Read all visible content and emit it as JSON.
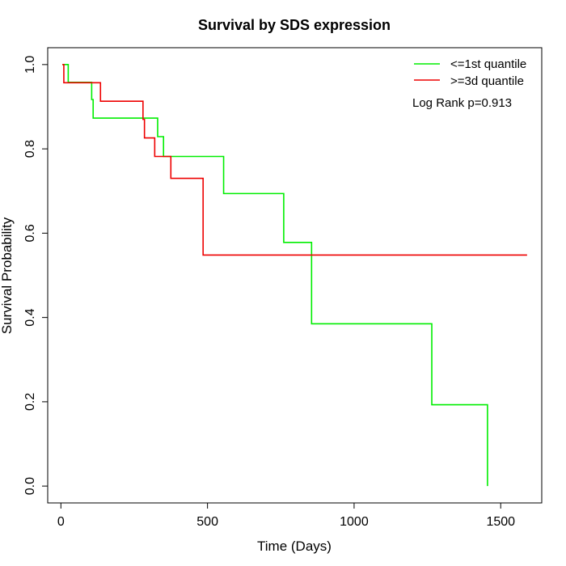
{
  "chart_data": {
    "type": "line",
    "step": true,
    "title": "Survival by SDS expression",
    "xlabel": "Time (Days)",
    "ylabel": "Survival Probability",
    "xlim": [
      -45,
      1640
    ],
    "ylim": [
      -0.04,
      1.04
    ],
    "xticks": [
      0,
      500,
      1000,
      1500
    ],
    "yticks": [
      0.0,
      0.2,
      0.4,
      0.6,
      0.8,
      1.0
    ],
    "xtick_labels": [
      "0",
      "500",
      "1000",
      "1500"
    ],
    "ytick_labels": [
      "0.0",
      "0.2",
      "0.4",
      "0.6",
      "0.8",
      "1.0"
    ],
    "legend_position": "top-right",
    "grid": false,
    "annotation": "Log Rank p=0.913",
    "series": [
      {
        "name": "<=1st quantile",
        "color": "#00ee00",
        "x": [
          5,
          25,
          105,
          110,
          330,
          350,
          555,
          760,
          855,
          1265,
          1455
        ],
        "y": [
          1.0,
          0.958,
          0.917,
          0.873,
          0.829,
          0.782,
          0.694,
          0.578,
          0.385,
          0.193,
          0.0
        ],
        "end_x": 1455
      },
      {
        "name": ">=3d quantile",
        "color": "#ee0000",
        "x": [
          5,
          10,
          135,
          280,
          285,
          320,
          375,
          485
        ],
        "y": [
          1.0,
          0.957,
          0.913,
          0.87,
          0.826,
          0.782,
          0.73,
          0.548
        ],
        "end_x": 1590
      }
    ]
  }
}
